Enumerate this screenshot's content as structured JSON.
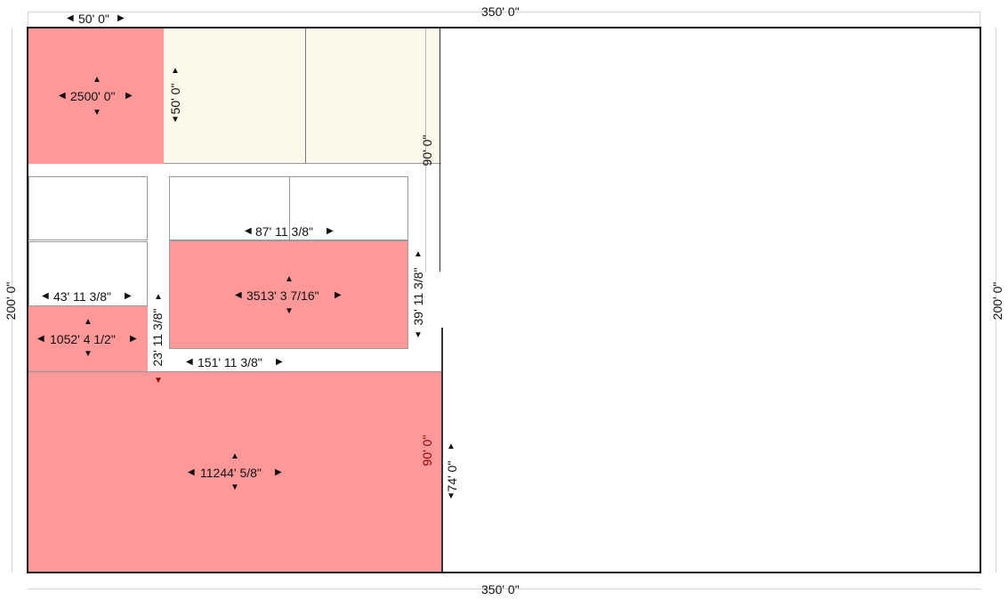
{
  "dimensions": {
    "top_overall": "350' 0\"",
    "bottom_overall": "350' 0\"",
    "left_overall": "200' 0\"",
    "right_overall": "200' 0\"",
    "top_left_width": "50' 0\"",
    "top_left_height": "50' 0\"",
    "upper_wall_height": "90' 0\"",
    "mid_room_width": "87' 11 3/8\"",
    "mid_room_height": "39' 11 3/8\"",
    "left_small_width": "43' 11 3/8\"",
    "corridor_height": "23' 11 3/8\"",
    "lower_wall_width": "151' 11 3/8\"",
    "bottom_room_height_red": "90' 0\"",
    "bottom_room_height": "74' 0\""
  },
  "areas": {
    "top_left": "2500' 0\"",
    "middle": "3513' 3 7/16\"",
    "left_small": "1052' 4 1/2\"",
    "bottom_large": "11244' 5/8\""
  },
  "colors": {
    "selected_room": "#ff9999",
    "cream_room": "#fcf9ea",
    "outline": "#111111",
    "accent_dim": "#8b0000"
  }
}
